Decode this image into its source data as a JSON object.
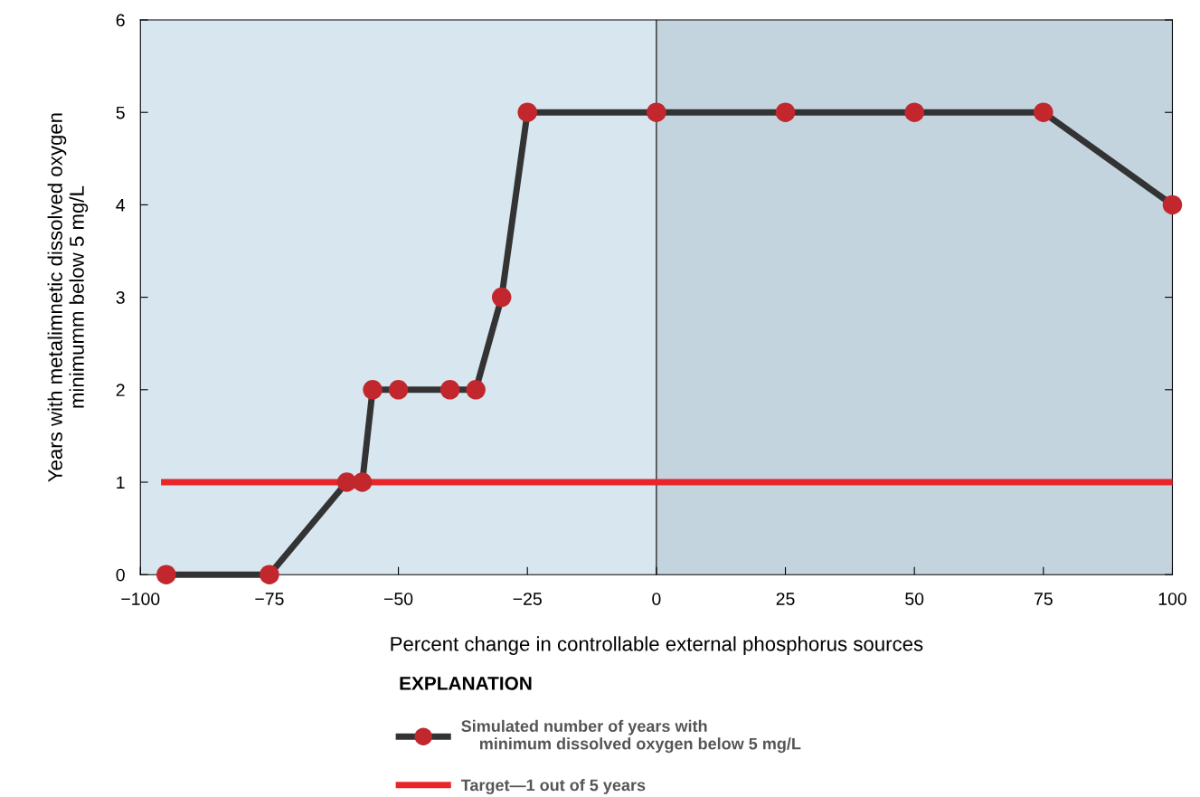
{
  "chart_data": {
    "type": "line",
    "xlabel": "Percent change in controllable external phosphorus sources",
    "ylabel": "Years with metalimnetic dissolved oxygen\nminimumm below 5 mg/L",
    "xlim": [
      -100,
      100
    ],
    "xticks": [
      {
        "value": -100,
        "label": "−100"
      },
      {
        "value": -75,
        "label": "−75"
      },
      {
        "value": -50,
        "label": "−50"
      },
      {
        "value": -25,
        "label": "−25"
      },
      0,
      25,
      50,
      75,
      100
    ],
    "ylim": [
      0,
      6
    ],
    "yticks": [
      0,
      1,
      2,
      3,
      4,
      5,
      6
    ],
    "grid": false,
    "legend": "bottom",
    "legend_title": "EXPLANATION",
    "bands": [
      {
        "axis": "x",
        "from": -100,
        "to": 0,
        "color": "#d8e7ef"
      },
      {
        "axis": "x",
        "from": 0,
        "to": 100,
        "color": "#c4d4df"
      }
    ],
    "ref_lines": [
      {
        "axis": "x",
        "value": 0,
        "color": "#000000",
        "line_style": "solid"
      }
    ],
    "series": [
      {
        "name": "Target—1 out of 5 years",
        "color": "#e8262a",
        "marker": "none",
        "x": [
          -96,
          100
        ],
        "values": [
          1,
          1
        ]
      },
      {
        "name": "Simulated number of years with\n    minimum dissolved oxygen below 5 mg/L",
        "color": "#333333",
        "marker": "circle",
        "colors": [
          "#c1272d",
          "#c1272d",
          "#c1272d",
          "#c1272d",
          "#c1272d",
          "#c1272d",
          "#c1272d",
          "#c1272d",
          "#c1272d",
          "#c1272d",
          "#c1272d",
          "#c1272d",
          "#c1272d",
          "#c1272d",
          "#c1272d"
        ],
        "x": [
          -95,
          -75,
          -60,
          -57,
          -55,
          -50,
          -40,
          -35,
          -30,
          -25,
          0,
          25,
          50,
          75,
          100
        ],
        "values": [
          0,
          0,
          1,
          1,
          2,
          2,
          2,
          2,
          3,
          5,
          5,
          5,
          5,
          5,
          4
        ]
      }
    ]
  }
}
